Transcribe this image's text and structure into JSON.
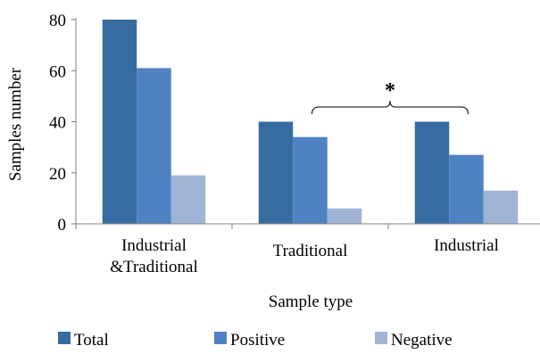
{
  "chart_data": {
    "type": "bar",
    "categories": [
      [
        "Industrial",
        "&Traditional"
      ],
      [
        "Traditional"
      ],
      [
        "Industrial"
      ]
    ],
    "series": [
      {
        "name": "Total",
        "values": [
          80,
          40,
          40
        ],
        "color": "#366c9f"
      },
      {
        "name": "Positive",
        "values": [
          61,
          34,
          27
        ],
        "color": "#4f82c2"
      },
      {
        "name": "Negative",
        "values": [
          19,
          6,
          13
        ],
        "color": "#9fb3d5"
      }
    ],
    "xlabel": "Sample type",
    "ylabel": "Samples number",
    "ylim": [
      0,
      80
    ],
    "yticks": [
      0,
      20,
      40,
      60,
      80
    ],
    "grid": false,
    "legend": "bottom",
    "annotation": {
      "text": "*",
      "from_category": 1,
      "to_category": 2
    }
  }
}
